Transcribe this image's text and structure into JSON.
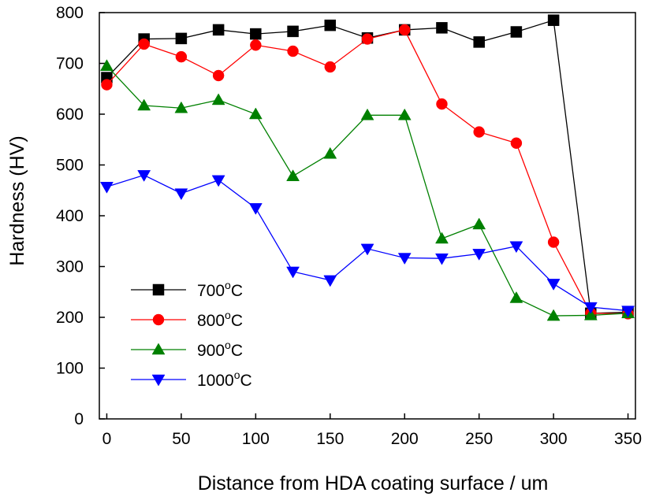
{
  "chart_data": {
    "type": "line",
    "title": "",
    "xlabel": "Distance from HDA coating surface / um",
    "ylabel": "Hardness (HV)",
    "xlim": [
      -5,
      355
    ],
    "ylim": [
      0,
      800
    ],
    "xticks": [
      0,
      50,
      100,
      150,
      200,
      250,
      300,
      350
    ],
    "yticks": [
      0,
      100,
      200,
      300,
      400,
      500,
      600,
      700,
      800
    ],
    "grid": false,
    "legend_position": "bottom-left",
    "x": [
      0,
      25,
      50,
      75,
      100,
      125,
      150,
      175,
      200,
      225,
      250,
      275,
      300,
      325,
      350
    ],
    "series": [
      {
        "name": "700",
        "unit": "oC",
        "marker": "square",
        "color": "#000000",
        "values": [
          672,
          748,
          749,
          766,
          758,
          763,
          775,
          750,
          766,
          770,
          742,
          762,
          785,
          208,
          210
        ]
      },
      {
        "name": "800",
        "unit": "oC",
        "marker": "circle",
        "color": "#ff0000",
        "values": [
          658,
          738,
          713,
          676,
          736,
          724,
          693,
          748,
          766,
          620,
          565,
          543,
          348,
          208,
          207
        ]
      },
      {
        "name": "900",
        "unit": "oC",
        "marker": "triangle-up",
        "color": "#008000",
        "values": [
          695,
          617,
          612,
          628,
          600,
          478,
          522,
          598,
          598,
          355,
          383,
          238,
          203,
          204,
          208
        ]
      },
      {
        "name": "1000",
        "unit": "oC",
        "marker": "triangle-down",
        "color": "#0000ff",
        "values": [
          457,
          480,
          444,
          470,
          415,
          290,
          273,
          335,
          317,
          316,
          325,
          340,
          266,
          220,
          213
        ]
      }
    ]
  }
}
